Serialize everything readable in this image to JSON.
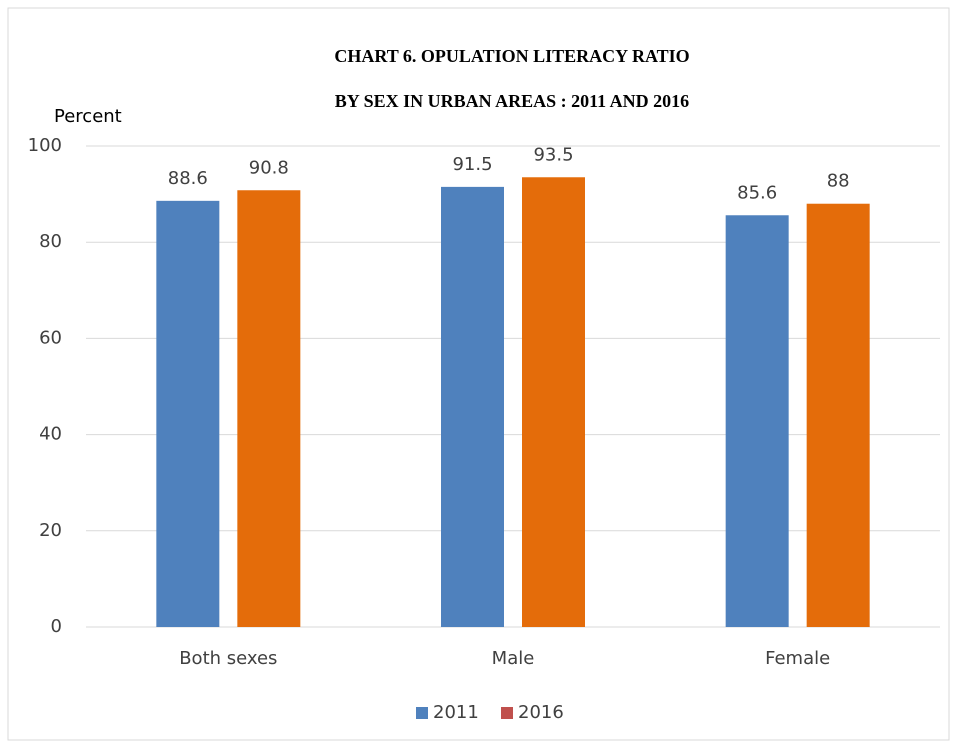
{
  "chart_data": {
    "type": "bar",
    "title": [
      "CHART 6. OPULATION  LITERACY RATIO",
      "BY SEX IN URBAN AREAS : 2011 AND 2016"
    ],
    "y_label": "Percent",
    "categories": [
      "Both sexes",
      "Male",
      "Female"
    ],
    "series": [
      {
        "name": "2011",
        "color": "#4f81bd",
        "legend_color": "#4f81bd",
        "values": [
          88.6,
          91.5,
          85.6
        ]
      },
      {
        "name": "2016",
        "color": "#e46c0a",
        "legend_color": "#c0504d",
        "values": [
          90.8,
          93.5,
          88
        ]
      }
    ],
    "ylim": [
      0,
      100
    ],
    "yticks": [
      0,
      20,
      40,
      60,
      80,
      100
    ],
    "grid": true,
    "legend": "bottom"
  }
}
